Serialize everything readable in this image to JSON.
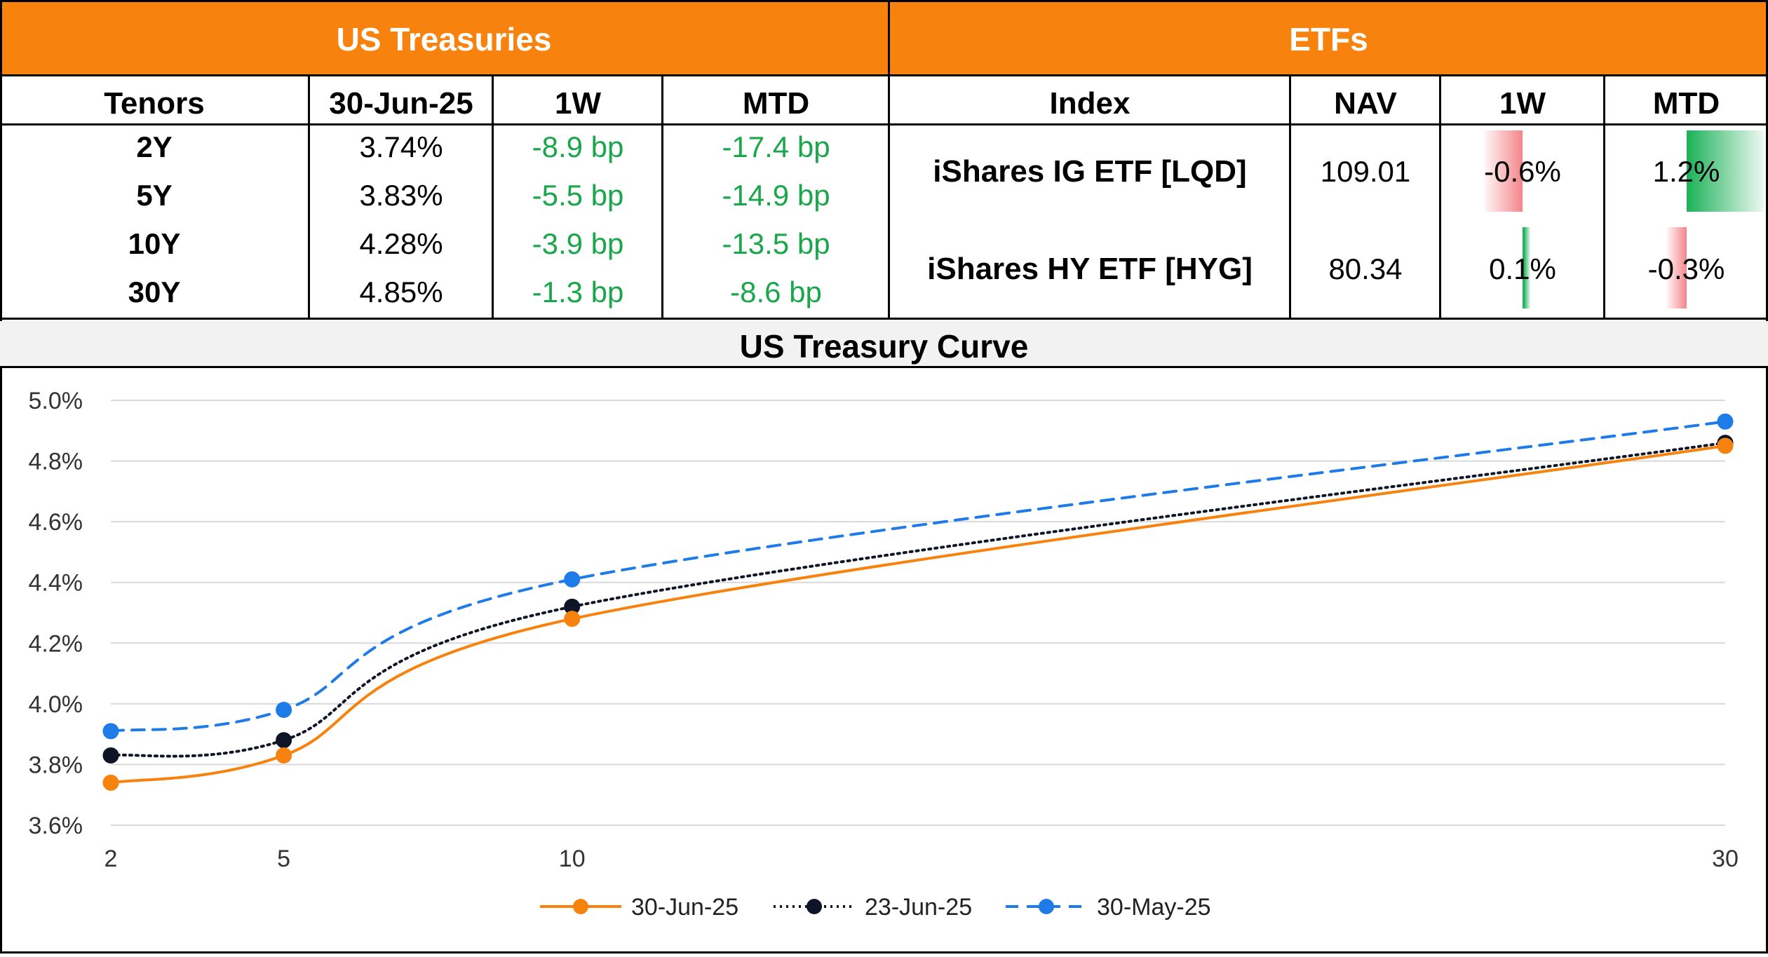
{
  "treasuries": {
    "title": "US Treasuries",
    "headers": [
      "Tenors",
      "30-Jun-25",
      "1W",
      "MTD"
    ],
    "rows": [
      {
        "tenor": "2Y",
        "yield": "3.74%",
        "w1": "-8.9 bp",
        "mtd": "-17.4 bp"
      },
      {
        "tenor": "5Y",
        "yield": "3.83%",
        "w1": "-5.5 bp",
        "mtd": "-14.9 bp"
      },
      {
        "tenor": "10Y",
        "yield": "4.28%",
        "w1": "-3.9 bp",
        "mtd": "-13.5 bp"
      },
      {
        "tenor": "30Y",
        "yield": "4.85%",
        "w1": "-1.3 bp",
        "mtd": "-8.6 bp"
      }
    ]
  },
  "etfs": {
    "title": "ETFs",
    "headers": [
      "Index",
      "NAV",
      "1W",
      "MTD"
    ],
    "rows": [
      {
        "name": "iShares IG ETF [LQD]",
        "nav": "109.01",
        "w1": "-0.6%",
        "w1_value": -0.6,
        "mtd": "1.2%",
        "mtd_value": 1.2
      },
      {
        "name": "iShares HY ETF [HYG]",
        "nav": "80.34",
        "w1": "0.1%",
        "w1_value": 0.1,
        "mtd": "-0.3%",
        "mtd_value": -0.3
      }
    ]
  },
  "colors": {
    "orange": "#f7830e",
    "green_text": "#1aa64b",
    "bar_red": "#f4858a",
    "bar_green": "#1fb25a",
    "series_blue": "#1e7be8",
    "series_black": "#0d1526"
  },
  "chart_data": {
    "type": "line",
    "title": "US Treasury Curve",
    "xlabel": "",
    "ylabel": "",
    "x": [
      2,
      5,
      10,
      30
    ],
    "xlim": [
      2,
      30
    ],
    "ylim": [
      3.6,
      5.0
    ],
    "ytick_step": 0.2,
    "y_tick_labels": [
      "3.6%",
      "3.8%",
      "4.0%",
      "4.2%",
      "4.4%",
      "4.6%",
      "4.8%",
      "5.0%"
    ],
    "x_tick_labels": [
      "2",
      "5",
      "10",
      "30"
    ],
    "grid": true,
    "legend_position": "bottom",
    "series": [
      {
        "name": "30-Jun-25",
        "values": [
          3.74,
          3.83,
          4.28,
          4.85
        ],
        "style": "solid",
        "color": "#f7830e"
      },
      {
        "name": "23-Jun-25",
        "values": [
          3.83,
          3.88,
          4.32,
          4.86
        ],
        "style": "dotted",
        "color": "#0d1526"
      },
      {
        "name": "30-May-25",
        "values": [
          3.91,
          3.98,
          4.41,
          4.93
        ],
        "style": "dashed",
        "color": "#1e7be8"
      }
    ]
  }
}
